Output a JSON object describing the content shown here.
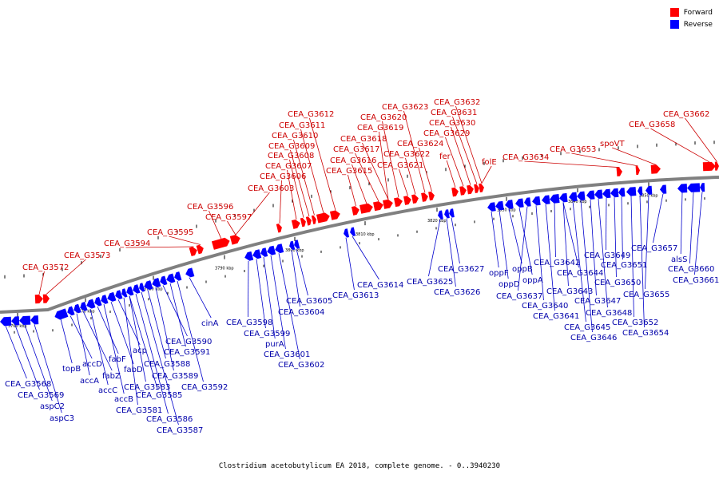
{
  "caption": "Clostridium acetobutylicum EA 2018, complete genome. - 0..3940230",
  "legend": {
    "forward_label": "Forward",
    "reverse_label": "Reverse"
  },
  "colors": {
    "forward": "#ff0000",
    "reverse": "#0000ff",
    "backbone": "#808080",
    "line_forward": "#cc0000",
    "line_reverse": "#0000cc"
  },
  "ticks": [
    "3760 kbp",
    "3770 kbp",
    "3780 kbp",
    "3790 kbp",
    "3800 kbp",
    "3810 kbp",
    "3820 kbp",
    "3830 kbp",
    "3840 kbp",
    "3850 kbp"
  ],
  "forward_labels": [
    "CEA_G3572",
    "CEA_G3573",
    "CEA_G3594",
    "CEA_G3595",
    "CEA_G3596",
    "CEA_G3597",
    "CEA_G3603",
    "CEA_G3606",
    "CEA_G3607",
    "CEA_G3608",
    "CEA_G3609",
    "CEA_G3610",
    "CEA_G3611",
    "CEA_G3612",
    "CEA_G3615",
    "CEA_G3616",
    "CEA_G3617",
    "CEA_G3618",
    "CEA_G3619",
    "CEA_G3620",
    "CEA_G3621",
    "CEA_G3622",
    "CEA_G3623",
    "CEA_G3624",
    "fer",
    "CEA_G3629",
    "CEA_G3630",
    "CEA_G3631",
    "CEA_G3632",
    "folE",
    "CEA_G3634",
    "CEA_G3653",
    "spoVT",
    "CEA_G3658",
    "CEA_G3662"
  ],
  "reverse_labels": [
    "CEA_G3568",
    "CEA_G3569",
    "aspC2",
    "aspC3",
    "topB",
    "accD",
    "accA",
    "fabZ",
    "accC",
    "fabF",
    "accB",
    "fabD",
    "acp",
    "CEA_G3581",
    "CEA_G3583",
    "CEA_G3585",
    "CEA_G3586",
    "CEA_G3587",
    "CEA_G3588",
    "CEA_G3589",
    "CEA_G3590",
    "CEA_G3591",
    "CEA_G3592",
    "cinA",
    "CEA_G3598",
    "CEA_G3599",
    "purA",
    "CEA_G3601",
    "CEA_G3602",
    "CEA_G3604",
    "CEA_G3605",
    "CEA_G3613",
    "CEA_G3614",
    "CEA_G3625",
    "CEA_G3626",
    "CEA_G3627",
    "oppF",
    "oppD",
    "oppB",
    "oppA",
    "CEA_G3637",
    "CEA_G3640",
    "CEA_G3641",
    "CEA_G3642",
    "CEA_G3643",
    "CEA_G3644",
    "CEA_G3645",
    "CEA_G3646",
    "CEA_G3647",
    "CEA_G3648",
    "CEA_G3649",
    "CEA_G3650",
    "CEA_G3651",
    "CEA_G3652",
    "CEA_G3654",
    "CEA_G3655",
    "CEA_G3657",
    "alsS",
    "CEA_G3660",
    "CEA_G3661"
  ]
}
